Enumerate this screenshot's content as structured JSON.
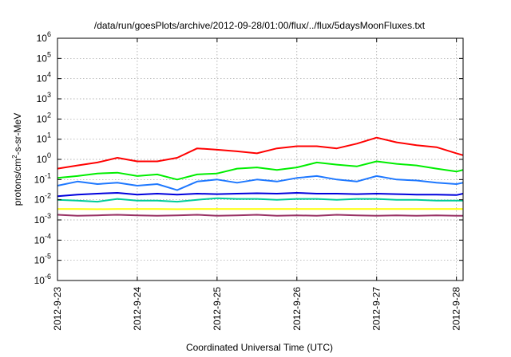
{
  "chart_data": {
    "type": "line",
    "title": "/data/run/goesPlots/archive/2012-09-28/01:00/flux/../flux/5daysMoonFluxes.txt",
    "xlabel": "Coordinated Universal Time (UTC)",
    "ylabel": {
      "base": "protons/cm",
      "sup": "2",
      "rest": "-s-sr-MeV"
    },
    "yscale": "log",
    "ylim": [
      1e-06,
      1000000.0
    ],
    "xlim": [
      "2012-09-23T00:00",
      "2012-09-28T02:00"
    ],
    "grid": true,
    "x_ticks": [
      "2012-9-23",
      "2012-9-24",
      "2012-9-25",
      "2012-9-26",
      "2012-9-27",
      "2012-9-28"
    ],
    "y_ticks": [
      {
        "base": "10",
        "exp": "-6"
      },
      {
        "base": "10",
        "exp": "-5"
      },
      {
        "base": "10",
        "exp": "-4"
      },
      {
        "base": "10",
        "exp": "-3"
      },
      {
        "base": "10",
        "exp": "-2"
      },
      {
        "base": "10",
        "exp": "-1"
      },
      {
        "base": "10",
        "exp": "0"
      },
      {
        "base": "10",
        "exp": "1"
      },
      {
        "base": "10",
        "exp": "2"
      },
      {
        "base": "10",
        "exp": "3"
      },
      {
        "base": "10",
        "exp": "4"
      },
      {
        "base": "10",
        "exp": "5"
      },
      {
        "base": "10",
        "exp": "6"
      }
    ],
    "x": [
      "2012-09-23T00:00",
      "2012-09-23T06:00",
      "2012-09-23T12:00",
      "2012-09-23T18:00",
      "2012-09-24T00:00",
      "2012-09-24T06:00",
      "2012-09-24T12:00",
      "2012-09-24T18:00",
      "2012-09-25T00:00",
      "2012-09-25T06:00",
      "2012-09-25T12:00",
      "2012-09-25T18:00",
      "2012-09-26T00:00",
      "2012-09-26T06:00",
      "2012-09-26T12:00",
      "2012-09-26T18:00",
      "2012-09-27T00:00",
      "2012-09-27T06:00",
      "2012-09-27T12:00",
      "2012-09-27T18:00",
      "2012-09-28T00:00",
      "2012-09-28T02:00"
    ],
    "series": [
      {
        "color": "#ff0000",
        "values": [
          0.35,
          0.5,
          0.7,
          1.2,
          0.8,
          0.8,
          1.2,
          3.5,
          3.0,
          2.5,
          2.0,
          3.5,
          4.5,
          4.5,
          3.5,
          6.0,
          12.0,
          7.0,
          5.0,
          4.0,
          2.0,
          1.6
        ]
      },
      {
        "color": "#00ee00",
        "values": [
          0.12,
          0.15,
          0.2,
          0.22,
          0.15,
          0.18,
          0.1,
          0.18,
          0.2,
          0.35,
          0.4,
          0.3,
          0.4,
          0.7,
          0.55,
          0.45,
          0.8,
          0.6,
          0.5,
          0.35,
          0.25,
          0.3
        ]
      },
      {
        "color": "#1e78ff",
        "values": [
          0.05,
          0.08,
          0.06,
          0.07,
          0.05,
          0.06,
          0.03,
          0.08,
          0.1,
          0.07,
          0.1,
          0.08,
          0.12,
          0.15,
          0.1,
          0.08,
          0.15,
          0.1,
          0.09,
          0.07,
          0.06,
          0.07
        ]
      },
      {
        "color": "#0000dd",
        "values": [
          0.015,
          0.018,
          0.02,
          0.022,
          0.018,
          0.02,
          0.018,
          0.02,
          0.019,
          0.02,
          0.021,
          0.02,
          0.022,
          0.02,
          0.02,
          0.019,
          0.02,
          0.019,
          0.018,
          0.018,
          0.017,
          0.02
        ]
      },
      {
        "color": "#00cc99",
        "values": [
          0.01,
          0.009,
          0.008,
          0.011,
          0.009,
          0.009,
          0.008,
          0.01,
          0.012,
          0.011,
          0.011,
          0.01,
          0.011,
          0.011,
          0.01,
          0.011,
          0.011,
          0.01,
          0.01,
          0.009,
          0.009,
          0.009
        ]
      },
      {
        "color": "#ffff00",
        "values": [
          0.0035,
          0.0035,
          0.0034,
          0.0035,
          0.0035,
          0.0035,
          0.0034,
          0.0035,
          0.0035,
          0.0035,
          0.0035,
          0.0035,
          0.0035,
          0.0035,
          0.0035,
          0.0035,
          0.0035,
          0.0035,
          0.0035,
          0.0035,
          0.0035,
          0.0035
        ]
      },
      {
        "color": "#993366",
        "values": [
          0.0018,
          0.0016,
          0.0017,
          0.0018,
          0.0017,
          0.0016,
          0.0017,
          0.0018,
          0.0016,
          0.0017,
          0.0018,
          0.0016,
          0.0017,
          0.0016,
          0.0018,
          0.0017,
          0.0016,
          0.0017,
          0.0016,
          0.0017,
          0.0016,
          0.0016
        ]
      }
    ]
  }
}
